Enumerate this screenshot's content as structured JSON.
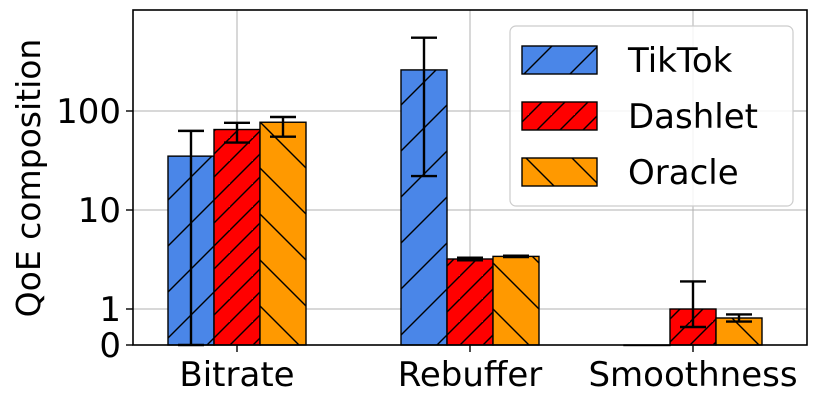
{
  "chart_data": {
    "type": "bar",
    "ylabel": "QoE composition",
    "yscale": "symlog",
    "ylim": [
      0,
      800
    ],
    "yticks": [
      0,
      1,
      10,
      100
    ],
    "ytick_labels": [
      "0",
      "1",
      "10",
      "100"
    ],
    "categories": [
      "Bitrate",
      "Rebuffer",
      "Smoothness"
    ],
    "grid": true,
    "legend_position": "top-right",
    "series": [
      {
        "name": "TikTok",
        "color": "#4a86e8",
        "hatch": "/",
        "values": [
          35,
          260,
          0
        ],
        "err_low": [
          0,
          22,
          0
        ],
        "err_high": [
          63,
          550,
          0
        ]
      },
      {
        "name": "Dashlet",
        "color": "#ff0000",
        "hatch": "//",
        "values": [
          65,
          3.2,
          1.0
        ],
        "err_low": [
          48,
          3.1,
          0.5
        ],
        "err_high": [
          76,
          3.3,
          1.9
        ]
      },
      {
        "name": "Oracle",
        "color": "#ff9900",
        "hatch": "\\",
        "values": [
          77,
          3.4,
          0.75
        ],
        "err_low": [
          55,
          3.35,
          0.65
        ],
        "err_high": [
          87,
          3.45,
          0.85
        ]
      }
    ]
  }
}
